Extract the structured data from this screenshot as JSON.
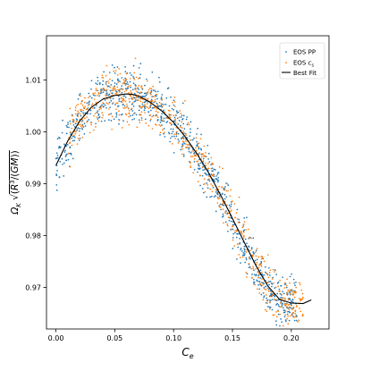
{
  "chart_data": {
    "type": "scatter",
    "title": "",
    "xlabel": "C_e",
    "ylabel": "Ω_K √(R³/(GM))",
    "xlim": [
      -0.008,
      0.232
    ],
    "ylim": [
      0.962,
      1.0185
    ],
    "xticks": [
      {
        "value": 0.0,
        "label": "0.00"
      },
      {
        "value": 0.05,
        "label": "0.05"
      },
      {
        "value": 0.1,
        "label": "0.10"
      },
      {
        "value": 0.15,
        "label": "0.15"
      },
      {
        "value": 0.2,
        "label": "0.20"
      }
    ],
    "yticks": [
      {
        "value": 0.97,
        "label": "0.97"
      },
      {
        "value": 0.98,
        "label": "0.98"
      },
      {
        "value": 0.99,
        "label": "0.99"
      },
      {
        "value": 1.0,
        "label": "1.00"
      },
      {
        "value": 1.01,
        "label": "1.01"
      }
    ],
    "grid": false,
    "legend_position": "top-right",
    "series": [
      {
        "name": "EOS PP",
        "marker": "dot",
        "color": "#1f77b4",
        "x_range": [
          0.0,
          0.205
        ],
        "count": 900,
        "scatter_about": "best_fit",
        "approx_spread": 0.0035
      },
      {
        "name": "EOS c_s",
        "marker": "dot",
        "color": "#ff7f0e",
        "x_range": [
          0.01,
          0.21
        ],
        "count": 700,
        "scatter_about": "best_fit",
        "approx_spread": 0.0035
      },
      {
        "name": "Best Fit",
        "marker": "line",
        "color": "#000000",
        "x": [
          0.0,
          0.01,
          0.02,
          0.03,
          0.04,
          0.05,
          0.06,
          0.065,
          0.07,
          0.08,
          0.09,
          0.1,
          0.11,
          0.12,
          0.13,
          0.14,
          0.15,
          0.16,
          0.17,
          0.18,
          0.19,
          0.2,
          0.21,
          0.217
        ],
        "y": [
          0.9935,
          0.9982,
          1.002,
          1.0047,
          1.0063,
          1.007,
          1.0073,
          1.0072,
          1.0069,
          1.0057,
          1.004,
          1.0018,
          0.999,
          0.9957,
          0.992,
          0.9878,
          0.9833,
          0.9787,
          0.9742,
          0.9703,
          0.9677,
          0.967,
          0.9669,
          0.9676
        ]
      }
    ],
    "legend": [
      {
        "label": "EOS PP",
        "mark": "dot",
        "color": "#1f77b4"
      },
      {
        "label": "EOS c_s",
        "mark": "dot",
        "color": "#ff7f0e"
      },
      {
        "label": "Best Fit",
        "mark": "line",
        "color": "#000000"
      }
    ]
  }
}
